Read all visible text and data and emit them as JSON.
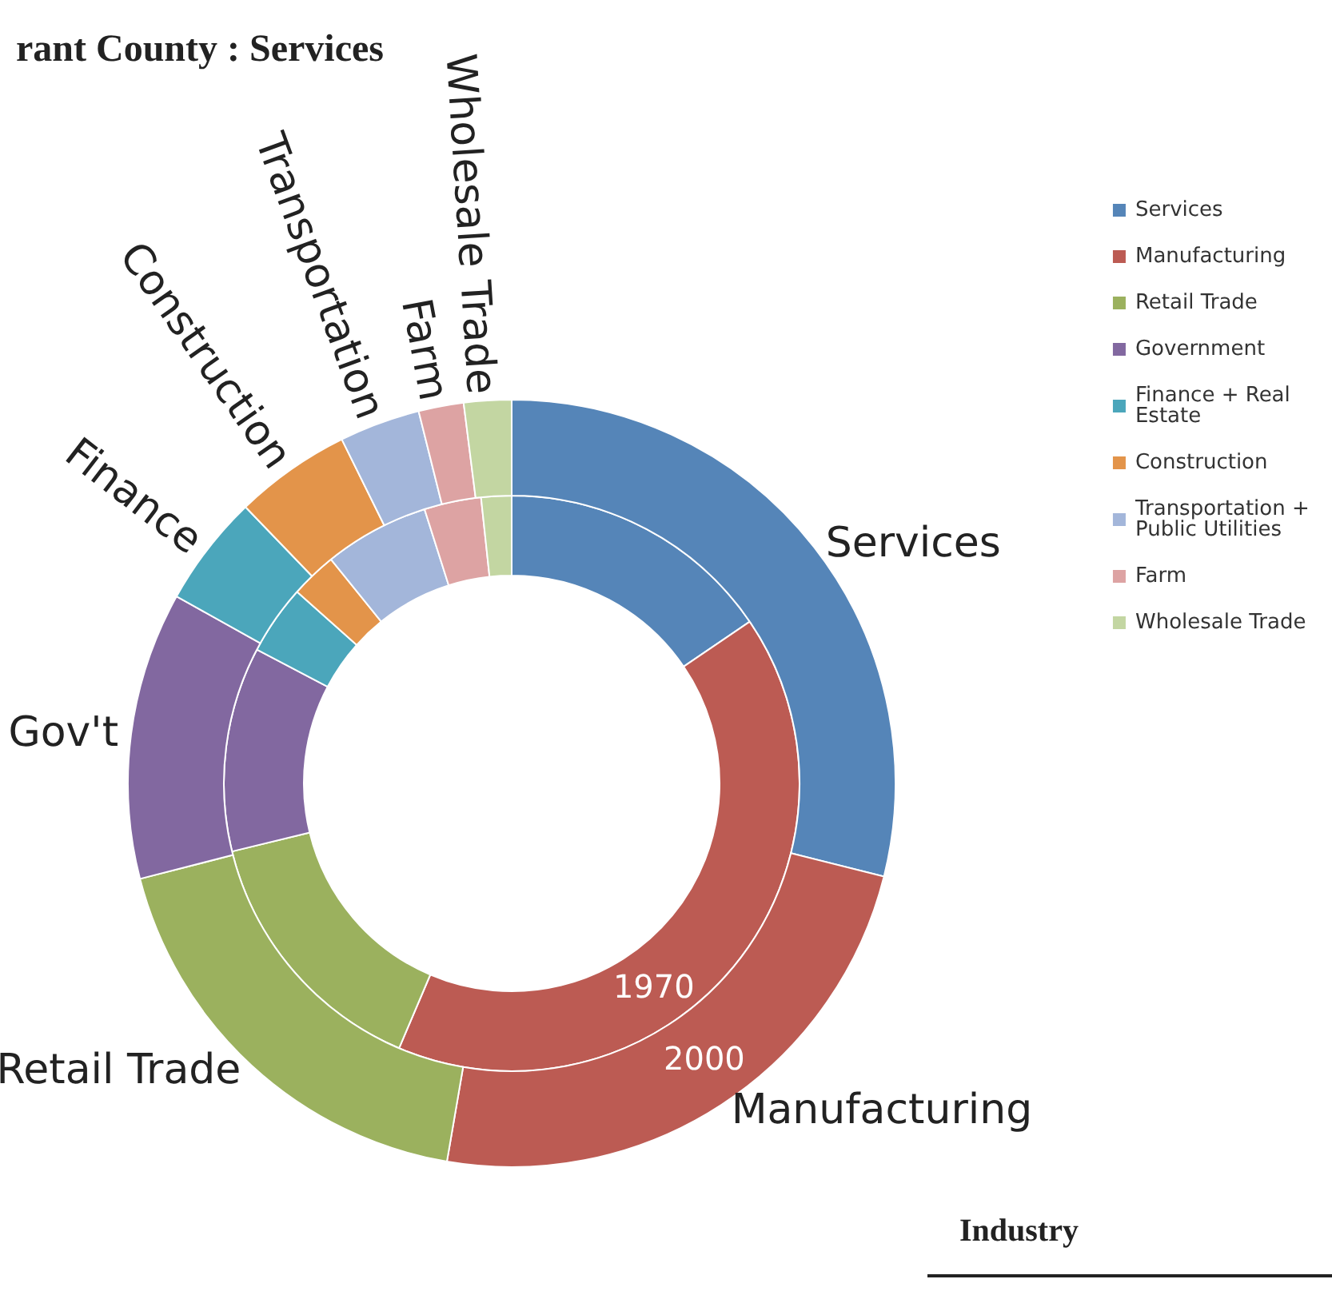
{
  "chart_data": {
    "type": "donut",
    "title": "rant County : Services",
    "categories": [
      "Services",
      "Manufacturing",
      "Retail Trade",
      "Government",
      "Finance + Real Estate",
      "Construction",
      "Transportation + Public Utilities",
      "Farm",
      "Wholesale Trade"
    ],
    "colors": [
      "#5585b8",
      "#bc5b53",
      "#9bb15e",
      "#8268a0",
      "#4ba6bb",
      "#e3944a",
      "#a3b6da",
      "#dda3a3",
      "#c3d6a2"
    ],
    "series": [
      {
        "name": "1970",
        "values": [
          15.5,
          40.9,
          14.8,
          11.5,
          3.9,
          2.6,
          5.9,
          3.2,
          1.7
        ]
      },
      {
        "name": "2000",
        "values": [
          28.9,
          23.8,
          18.3,
          12.1,
          4.7,
          4.9,
          3.4,
          1.9,
          2.0
        ]
      }
    ],
    "annotations": [
      "Services",
      "Manufacturing",
      "Retail Trade",
      "Gov't",
      "Finance",
      "Construction",
      "Transportation",
      "Farm",
      "Wholesale Trade",
      "Industry"
    ],
    "legend": "right"
  }
}
